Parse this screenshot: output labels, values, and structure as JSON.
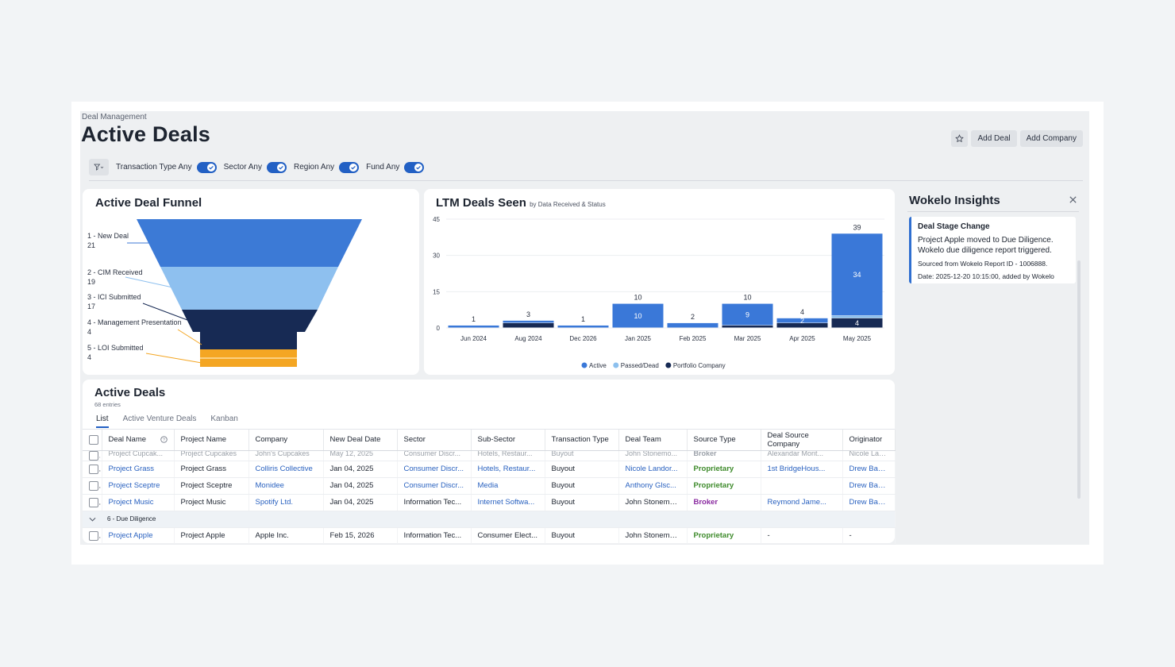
{
  "breadcrumb": "Deal Management",
  "page_title": "Active Deals",
  "actions": {
    "add_deal": "Add Deal",
    "add_company": "Add Company"
  },
  "filters": [
    {
      "label": "Transaction Type Any",
      "on": true
    },
    {
      "label": "Sector Any",
      "on": true
    },
    {
      "label": "Region Any",
      "on": true
    },
    {
      "label": "Fund Any",
      "on": true
    }
  ],
  "funnel": {
    "title": "Active Deal Funnel",
    "stages": [
      {
        "name": "1 - New Deal",
        "count": "21"
      },
      {
        "name": "2 - CIM Received",
        "count": "19"
      },
      {
        "name": "3 - ICI Submitted",
        "count": "17"
      },
      {
        "name": "4 - Management Presentation",
        "count": "4"
      },
      {
        "name": "5 - LOI Submitted",
        "count": "4"
      }
    ]
  },
  "ltm": {
    "title": "LTM Deals Seen",
    "subtitle": "by Data Received & Status"
  },
  "chart_data": {
    "type": "bar",
    "stacked": true,
    "categories": [
      "Jun 2024",
      "Aug 2024",
      "Dec 2026",
      "Jan 2025",
      "Feb 2025",
      "Mar 2025",
      "Apr 2025",
      "May 2025"
    ],
    "totals": [
      1,
      3,
      1,
      10,
      2,
      10,
      4,
      39
    ],
    "series": [
      {
        "name": "Active",
        "color": "#3a78d8",
        "values": [
          1,
          1,
          1,
          10,
          2,
          9,
          2,
          34
        ]
      },
      {
        "name": "Passed/Dead",
        "color": "#8cc0ee",
        "values": [
          0,
          0,
          0,
          0,
          0,
          0,
          0,
          1
        ]
      },
      {
        "name": "Portfolio Company",
        "color": "#172a54",
        "values": [
          0,
          2,
          0,
          0,
          0,
          1,
          2,
          4
        ]
      }
    ],
    "segment_labels": [
      null,
      null,
      null,
      "10",
      null,
      "9",
      "2",
      "34"
    ],
    "bottom_labels": [
      null,
      null,
      null,
      null,
      null,
      null,
      null,
      "4"
    ],
    "yticks": [
      0,
      15,
      30,
      45
    ],
    "ylim": [
      0,
      45
    ],
    "legend": "bottom-center"
  },
  "insights": {
    "title": "Wokelo Insights",
    "note_title": "Deal Stage Change",
    "note_body_1": "Project Apple moved to Due Diligence.",
    "note_body_2": "Wokelo due diligence report triggered.",
    "note_meta_1": "Sourced from Wokelo Report ID - 1006888.",
    "note_meta_2": "Date: 2025-12-20 10:15:00, added by Wokelo"
  },
  "deals": {
    "title": "Active Deals",
    "count": "68 entries",
    "tabs": [
      "List",
      "Active Venture Deals",
      "Kanban"
    ],
    "columns": [
      "Deal Name",
      "Project Name",
      "Company",
      "New Deal Date",
      "Sector",
      "Sub-Sector",
      "Transaction Type",
      "Deal Team",
      "Source Type",
      "Deal Source Company",
      "Originator"
    ],
    "cut_row": [
      "Project Cupcak...",
      "Project Cupcakes",
      "John's Cupcakes",
      "May 12, 2025",
      "Consumer Discr...",
      "Hotels, Restaur...",
      "Buyout",
      "John Stonemo...",
      "Broker",
      "Alexandar Mont...",
      "Nicole Landon"
    ],
    "rows": [
      [
        "Project Grass",
        "Project Grass",
        "Colliris Collective",
        "Jan 04, 2025",
        "Consumer Discr...",
        "Hotels, Restaur...",
        "Buyout",
        "Nicole Landor...",
        "Proprietary",
        "1st BridgeHous...",
        "Drew Baker"
      ],
      [
        "Project Sceptre",
        "Project Sceptre",
        "Monidee",
        "Jan 04, 2025",
        "Consumer Discr...",
        "Media",
        "Buyout",
        "Anthony Glsc...",
        "Proprietary",
        "",
        "Drew Baker"
      ],
      [
        "Project Music",
        "Project Music",
        "Spotify Ltd.",
        "Jan 04, 2025",
        "Information Tec...",
        "Internet Softwa...",
        "Buyout",
        "John Stonemo...",
        "Broker",
        "Reymond Jame...",
        "Drew Baker"
      ]
    ],
    "group_label": "6 - Due Diligence",
    "group_rows": [
      [
        "Project Apple",
        "Project Apple",
        "Apple Inc.",
        "Feb 15, 2026",
        "Information Tec...",
        "Consumer Elect...",
        "Buyout",
        "John Stonemount",
        "Proprietary",
        "-",
        "-"
      ]
    ]
  }
}
